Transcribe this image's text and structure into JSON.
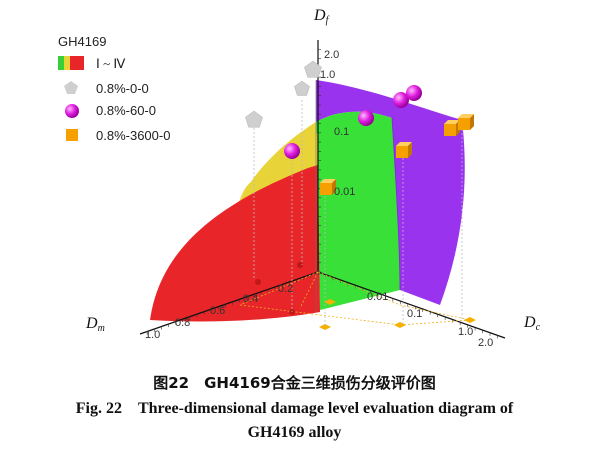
{
  "chart_data": {
    "type": "scatter",
    "alloy": "GH4169",
    "surface_legend": "Ⅰ ~ Ⅳ",
    "level_colors": [
      "#e8262a",
      "#e8d438",
      "#38e038",
      "#9933ee"
    ],
    "axes": {
      "Dm": {
        "label_main": "D",
        "label_sub": "m",
        "ticks": [
          "1.0",
          "0.8",
          "0.6",
          "0.4",
          "0.2"
        ]
      },
      "Dc": {
        "label_main": "D",
        "label_sub": "c",
        "ticks": [
          "0.01",
          "0.1",
          "1.0",
          "2.0"
        ]
      },
      "Df": {
        "label_main": "D",
        "label_sub": "f",
        "ticks": [
          "0.01",
          "0.1",
          "1.0",
          "2.0"
        ]
      }
    },
    "series": [
      {
        "name": "0.8%-0-0",
        "marker": "pentagon",
        "color": "#cfcfcf"
      },
      {
        "name": "0.8%-60-0",
        "marker": "sphere",
        "color": "#e020e0"
      },
      {
        "name": "0.8%-3600-0",
        "marker": "cube",
        "color": "#f5a000"
      }
    ]
  },
  "caption": {
    "cn": "图22　GH4169合金三维损伤分级评价图",
    "en_line1": "Fig. 22　Three-dimensional damage level evaluation diagram of",
    "en_line2": "GH4169 alloy"
  }
}
